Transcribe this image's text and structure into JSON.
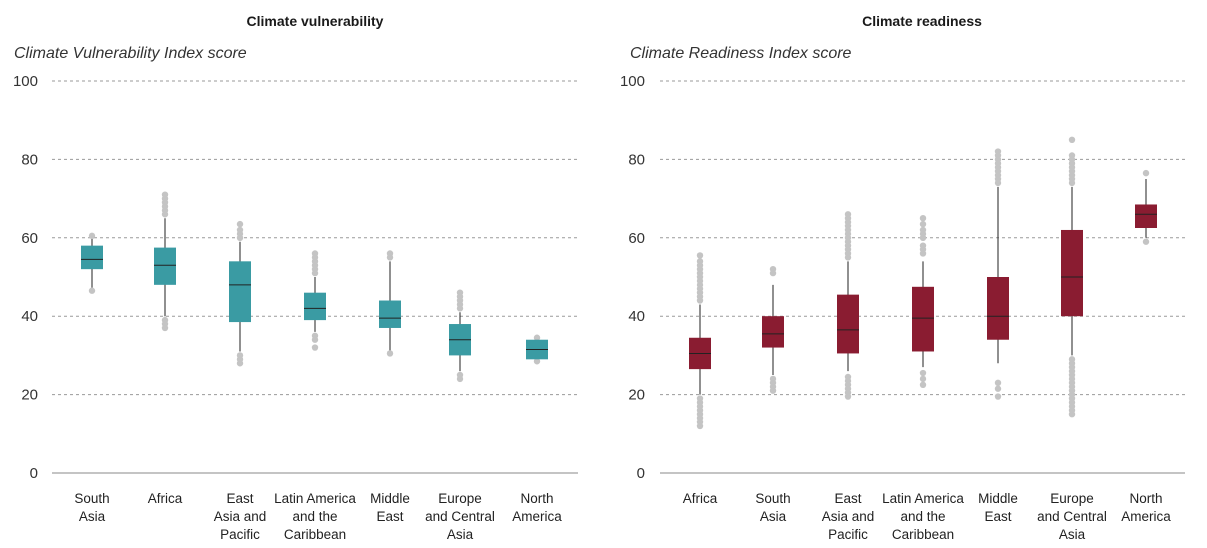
{
  "chart_data": [
    {
      "type": "box",
      "title": "Climate vulnerability",
      "ylabel": "Climate Vulnerability Index score",
      "ylim": [
        0,
        100
      ],
      "yticks": [
        0,
        20,
        40,
        60,
        80,
        100
      ],
      "color": "#3a9ba3",
      "grid": true,
      "categories": [
        [
          "South",
          "Asia"
        ],
        [
          "Africa"
        ],
        [
          "East",
          "Asia and",
          "Pacific"
        ],
        [
          "Latin America",
          "and the",
          "Caribbean"
        ],
        [
          "Middle",
          "East"
        ],
        [
          "Europe",
          "and Central",
          "Asia"
        ],
        [
          "North",
          "America"
        ]
      ],
      "boxes": [
        {
          "wlo": 47,
          "q1": 52,
          "median": 54.5,
          "q3": 58,
          "whi": 60,
          "outliers": [
            46.5,
            60.5
          ]
        },
        {
          "wlo": 40,
          "q1": 48,
          "median": 53,
          "q3": 57.5,
          "whi": 65,
          "outliers": [
            37,
            38,
            39,
            66,
            67,
            68,
            69,
            70,
            71
          ]
        },
        {
          "wlo": 31,
          "q1": 38.5,
          "median": 48,
          "q3": 54,
          "whi": 59,
          "outliers": [
            28,
            29,
            30,
            60,
            61,
            62,
            63.5
          ]
        },
        {
          "wlo": 36,
          "q1": 39,
          "median": 42,
          "q3": 46,
          "whi": 50,
          "outliers": [
            32,
            34,
            35,
            51,
            52,
            53,
            54,
            55,
            56
          ]
        },
        {
          "wlo": 31,
          "q1": 37,
          "median": 39.5,
          "q3": 44,
          "whi": 54,
          "outliers": [
            30.5,
            55,
            56
          ]
        },
        {
          "wlo": 26,
          "q1": 30,
          "median": 34,
          "q3": 38,
          "whi": 41,
          "outliers": [
            24,
            25,
            42,
            43,
            44,
            45,
            46
          ]
        },
        {
          "wlo": 29,
          "q1": 29,
          "median": 31.5,
          "q3": 34,
          "whi": 34,
          "outliers": [
            28.5,
            34.5
          ]
        }
      ]
    },
    {
      "type": "box",
      "title": "Climate readiness",
      "ylabel": "Climate Readiness Index score",
      "ylim": [
        0,
        100
      ],
      "yticks": [
        0,
        20,
        40,
        60,
        80,
        100
      ],
      "color": "#8a1c31",
      "grid": true,
      "categories": [
        [
          "Africa"
        ],
        [
          "South",
          "Asia"
        ],
        [
          "East",
          "Asia and",
          "Pacific"
        ],
        [
          "Latin America",
          "and the",
          "Caribbean"
        ],
        [
          "Middle",
          "East"
        ],
        [
          "Europe",
          "and Central",
          "Asia"
        ],
        [
          "North",
          "America"
        ]
      ],
      "boxes": [
        {
          "wlo": 20,
          "q1": 26.5,
          "median": 30.5,
          "q3": 34.5,
          "whi": 43,
          "outliers": [
            12,
            13,
            14,
            15,
            16,
            17,
            18,
            19,
            44,
            45,
            46,
            47,
            48,
            49,
            50,
            51,
            52,
            53,
            54,
            55.5
          ]
        },
        {
          "wlo": 25,
          "q1": 32,
          "median": 35.5,
          "q3": 40,
          "whi": 48,
          "outliers": [
            21,
            22,
            23,
            24,
            51,
            52
          ]
        },
        {
          "wlo": 26,
          "q1": 30.5,
          "median": 36.5,
          "q3": 45.5,
          "whi": 54,
          "outliers": [
            19.5,
            20.5,
            21.5,
            22.5,
            23.5,
            24.5,
            55,
            56,
            57,
            58,
            59,
            60,
            61,
            62,
            63,
            64,
            65,
            66
          ]
        },
        {
          "wlo": 27,
          "q1": 31,
          "median": 39.5,
          "q3": 47.5,
          "whi": 54,
          "outliers": [
            22.5,
            24,
            25.5,
            56,
            57,
            58,
            60,
            61,
            62,
            63.5,
            65
          ]
        },
        {
          "wlo": 28,
          "q1": 34,
          "median": 40,
          "q3": 50,
          "whi": 73,
          "outliers": [
            19.5,
            21.5,
            23,
            74,
            75,
            76,
            77,
            78,
            79,
            80,
            81,
            82
          ]
        },
        {
          "wlo": 30,
          "q1": 40,
          "median": 50,
          "q3": 62,
          "whi": 73,
          "outliers": [
            15,
            16,
            17,
            18,
            19,
            20,
            21,
            22,
            23,
            24,
            25,
            26,
            27,
            28,
            29,
            74,
            75,
            76,
            77,
            78,
            79,
            80,
            81,
            85
          ]
        },
        {
          "wlo": 60,
          "q1": 62.5,
          "median": 66,
          "q3": 68.5,
          "whi": 75,
          "outliers": [
            59,
            76.5
          ]
        }
      ]
    }
  ]
}
